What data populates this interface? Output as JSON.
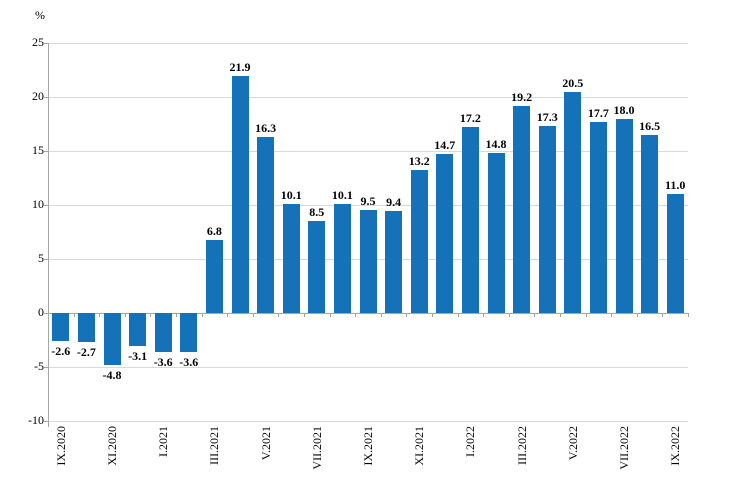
{
  "chart_data": {
    "type": "bar",
    "title": "",
    "ylabel": "%",
    "xlabel": "",
    "grid": true,
    "legend_position": "none",
    "ylim": [
      -10,
      25
    ],
    "yticks": [
      25,
      20,
      15,
      10,
      5,
      0,
      -5,
      -10
    ],
    "categories": [
      "IX.2020",
      "X.2020",
      "XI.2020",
      "XII.2020",
      "I.2021",
      "II.2021",
      "III.2021",
      "IV.2021",
      "V.2021",
      "VI.2021",
      "VII.2021",
      "VIII.2021",
      "IX.2021",
      "X.2021",
      "XI.2021",
      "XII.2021",
      "I.2022",
      "II.2022",
      "III.2022",
      "IV.2022",
      "V.2022",
      "VI.2022",
      "VII.2022",
      "VIII.2022",
      "IX.2022"
    ],
    "values": [
      -2.6,
      -2.7,
      -4.8,
      -3.1,
      -3.6,
      -3.6,
      6.8,
      21.9,
      16.3,
      10.1,
      8.5,
      10.1,
      9.5,
      9.4,
      13.2,
      14.7,
      17.2,
      14.8,
      19.2,
      17.3,
      20.5,
      17.7,
      18.0,
      16.5,
      11.0
    ],
    "data_labels": [
      "-2.6",
      "-2.7",
      "-4.8",
      "-3.1",
      "-3.6",
      "-3.6",
      "6.8",
      "21.9",
      "16.3",
      "10.1",
      "8.5",
      "10.1",
      "9.5",
      "9.4",
      "13.2",
      "14.7",
      "17.2",
      "14.8",
      "19.2",
      "17.3",
      "20.5",
      "17.7",
      "18.0",
      "16.5",
      "11.0"
    ],
    "xtick_labels": [
      "IX.2020",
      "XI.2020",
      "I.2021",
      "III.2021",
      "V.2021",
      "VII.2021",
      "IX.2021",
      "XI.2021",
      "I.2022",
      "III.2022",
      "V.2022",
      "VII.2022",
      "IX.2022"
    ],
    "xtick_every": 2,
    "colors": {
      "bar": "#1672B8",
      "grid": "#D9D9D9",
      "axis": "#A6A6A6",
      "text": "#000000"
    }
  }
}
